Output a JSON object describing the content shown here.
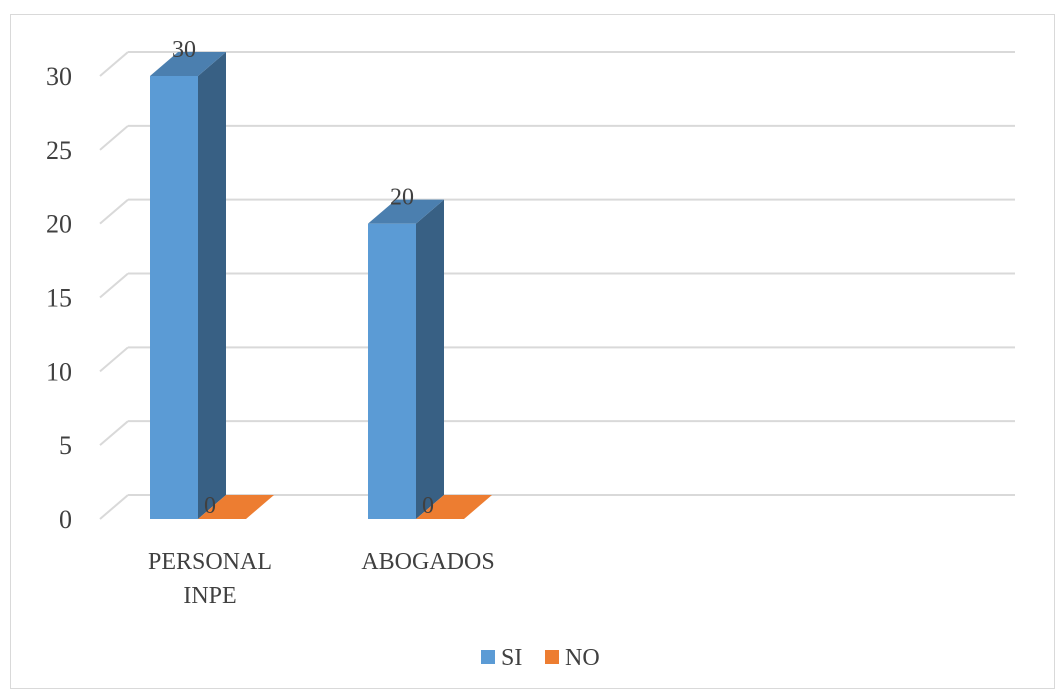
{
  "chart_data": {
    "type": "bar",
    "categories": [
      [
        "PERSONAL",
        "INPE"
      ],
      [
        "ABOGADOS"
      ],
      [
        ""
      ]
    ],
    "series": [
      {
        "name": "SI",
        "values": [
          30,
          20,
          null
        ],
        "color": "#5b9bd5"
      },
      {
        "name": "NO",
        "values": [
          0,
          0,
          null
        ],
        "color": "#ed7d31"
      }
    ],
    "data_labels": [
      "30",
      "0",
      "20",
      "0"
    ],
    "title": "",
    "xlabel": "",
    "ylabel": "",
    "ylim": [
      0,
      30
    ],
    "yticks": [
      0,
      5,
      10,
      15,
      20,
      25,
      30
    ],
    "grid": true,
    "style": "3d-column",
    "legend": "bottom"
  }
}
